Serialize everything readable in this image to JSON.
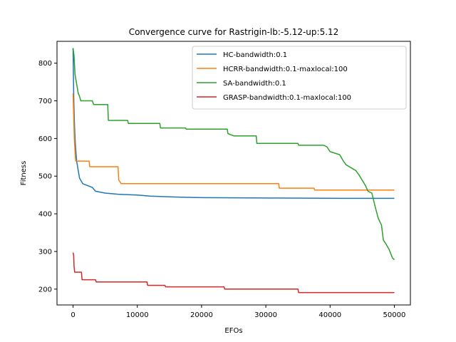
{
  "chart_data": {
    "type": "line",
    "title": "Convergence curve for Rastrigin-lb:-5.12-up:5.12",
    "xlabel": "EFOs",
    "ylabel": "Fitness",
    "xlim": [
      -2500,
      52500
    ],
    "ylim": [
      158,
      858
    ],
    "xticks": [
      0,
      10000,
      20000,
      30000,
      40000,
      50000
    ],
    "yticks": [
      200,
      300,
      400,
      500,
      600,
      700,
      800
    ],
    "legend_position": "top-right",
    "grid": false,
    "series": [
      {
        "name": "HC-bandwidth:0.1",
        "color": "#1f77b4",
        "points": [
          [
            0,
            840
          ],
          [
            60,
            760
          ],
          [
            120,
            700
          ],
          [
            200,
            650
          ],
          [
            300,
            600
          ],
          [
            420,
            570
          ],
          [
            560,
            540
          ],
          [
            800,
            515
          ],
          [
            1000,
            495
          ],
          [
            1500,
            480
          ],
          [
            3000,
            470
          ],
          [
            3500,
            460
          ],
          [
            5000,
            455
          ],
          [
            7000,
            452
          ],
          [
            10000,
            450
          ],
          [
            12000,
            447
          ],
          [
            15000,
            445
          ],
          [
            20000,
            443
          ],
          [
            30000,
            442
          ],
          [
            42000,
            441
          ],
          [
            50000,
            441
          ]
        ]
      },
      {
        "name": "HCRR-bandwidth:0.1-maxlocal:100",
        "color": "#ff7f0e",
        "points": [
          [
            0,
            720
          ],
          [
            100,
            660
          ],
          [
            200,
            600
          ],
          [
            300,
            565
          ],
          [
            400,
            540
          ],
          [
            2500,
            540
          ],
          [
            2600,
            525
          ],
          [
            7000,
            525
          ],
          [
            7100,
            490
          ],
          [
            7500,
            480
          ],
          [
            32000,
            480
          ],
          [
            32100,
            468
          ],
          [
            37500,
            468
          ],
          [
            37600,
            463
          ],
          [
            50000,
            463
          ]
        ]
      },
      {
        "name": "SA-bandwidth:0.1",
        "color": "#2ca02c",
        "points": [
          [
            0,
            840
          ],
          [
            150,
            820
          ],
          [
            300,
            770
          ],
          [
            500,
            750
          ],
          [
            800,
            720
          ],
          [
            1000,
            712
          ],
          [
            1200,
            700
          ],
          [
            3000,
            700
          ],
          [
            3200,
            690
          ],
          [
            5400,
            690
          ],
          [
            5500,
            648
          ],
          [
            8500,
            648
          ],
          [
            8600,
            640
          ],
          [
            13500,
            640
          ],
          [
            13600,
            628
          ],
          [
            17500,
            628
          ],
          [
            17600,
            625
          ],
          [
            24000,
            625
          ],
          [
            24100,
            613
          ],
          [
            25000,
            607
          ],
          [
            28500,
            607
          ],
          [
            28600,
            587
          ],
          [
            35000,
            587
          ],
          [
            35100,
            582
          ],
          [
            39000,
            582
          ],
          [
            39500,
            578
          ],
          [
            40000,
            565
          ],
          [
            41500,
            557
          ],
          [
            42000,
            542
          ],
          [
            42500,
            530
          ],
          [
            43500,
            520
          ],
          [
            44000,
            515
          ],
          [
            44500,
            503
          ],
          [
            45500,
            475
          ],
          [
            45900,
            460
          ],
          [
            46500,
            455
          ],
          [
            47000,
            420
          ],
          [
            47500,
            388
          ],
          [
            48000,
            370
          ],
          [
            48300,
            330
          ],
          [
            48700,
            320
          ],
          [
            49200,
            305
          ],
          [
            49700,
            283
          ],
          [
            50000,
            278
          ]
        ]
      },
      {
        "name": "GRASP-bandwidth:0.1-maxlocal:100",
        "color": "#d62728",
        "points": [
          [
            0,
            297
          ],
          [
            100,
            290
          ],
          [
            150,
            262
          ],
          [
            250,
            245
          ],
          [
            1300,
            245
          ],
          [
            1400,
            225
          ],
          [
            3500,
            225
          ],
          [
            3600,
            219
          ],
          [
            11500,
            219
          ],
          [
            11600,
            210
          ],
          [
            14300,
            210
          ],
          [
            14400,
            206
          ],
          [
            23500,
            206
          ],
          [
            23600,
            200
          ],
          [
            35000,
            200
          ],
          [
            35100,
            191
          ],
          [
            50000,
            191
          ]
        ]
      }
    ]
  }
}
